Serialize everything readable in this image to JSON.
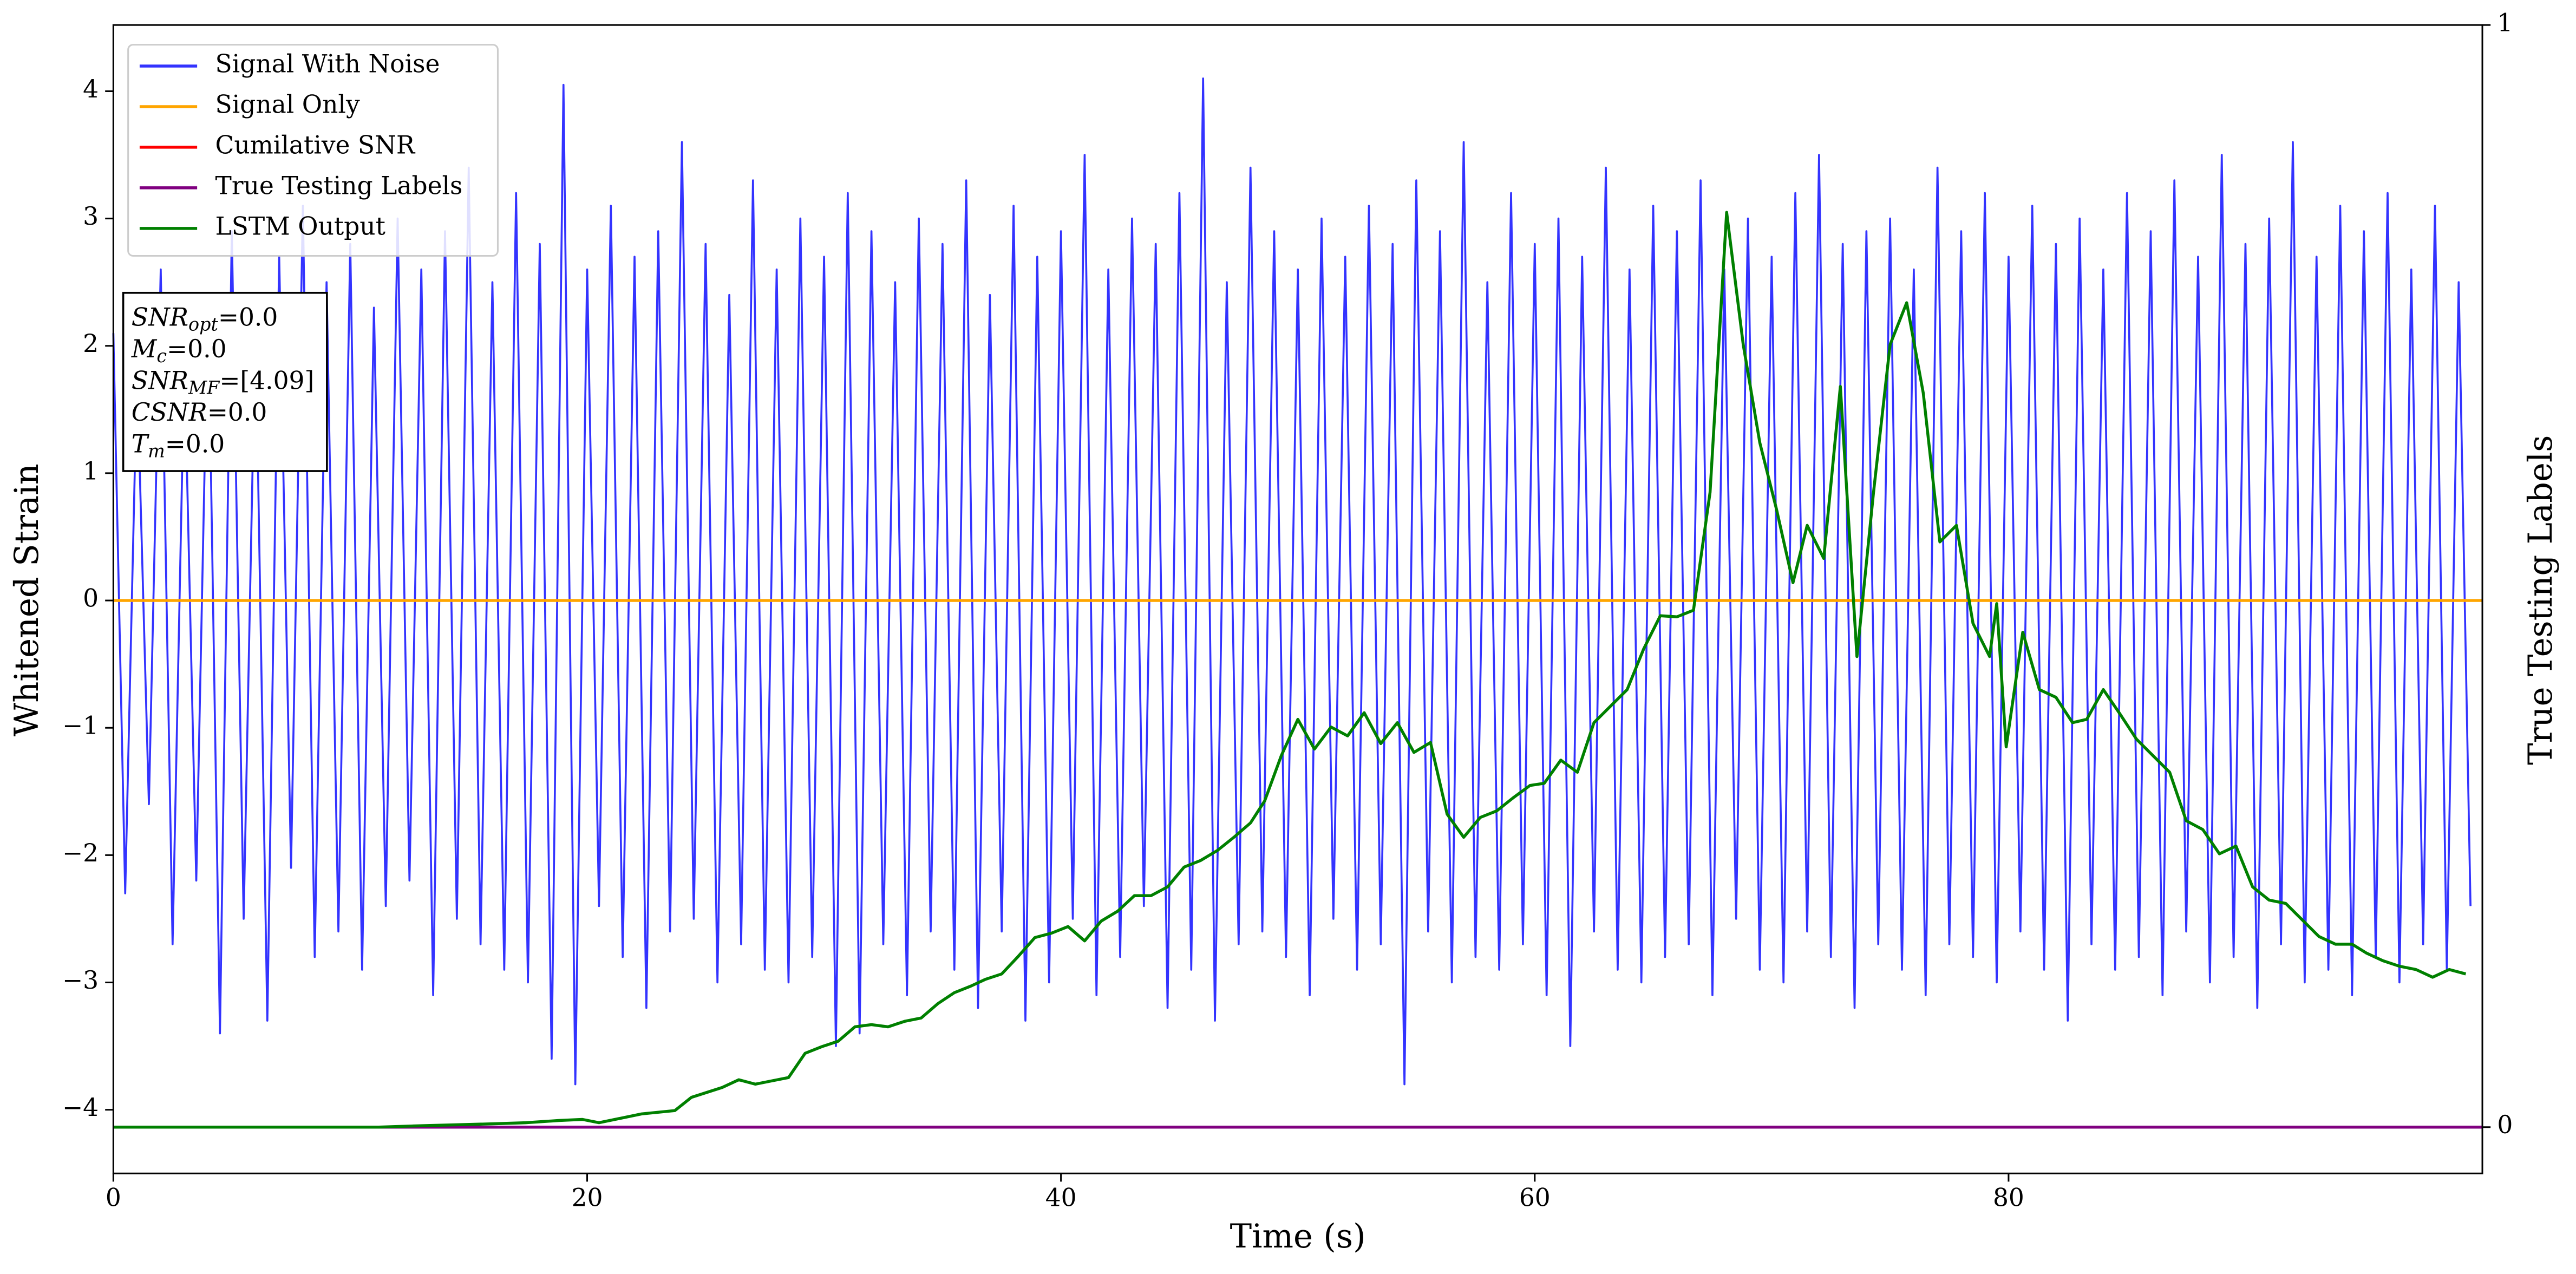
{
  "chart_data": {
    "type": "line",
    "xlabel": "Time (s)",
    "ylabel": "Whitened Strain",
    "y2label": "True Testing Labels",
    "xlim": [
      0,
      100
    ],
    "ylim": [
      -4.5,
      4.52
    ],
    "y2lim": [
      -0.042,
      1.0
    ],
    "xticks": [
      0,
      20,
      40,
      60,
      80
    ],
    "yticks": [
      {
        "value": -4,
        "label": "−4"
      },
      {
        "value": -3,
        "label": "−3"
      },
      {
        "value": -2,
        "label": "−2"
      },
      {
        "value": -1,
        "label": "−1"
      },
      0,
      1,
      2,
      3,
      4
    ],
    "y2ticks": [
      0,
      1
    ],
    "legend": "upper left",
    "annotation": [
      {
        "base": "SNR",
        "sub": "opt",
        "text": "=0.0"
      },
      {
        "base": "M",
        "sub": "c",
        "text": "=0.0"
      },
      {
        "base": "SNR",
        "sub": "MF",
        "text": "=[4.09]"
      },
      {
        "base": "CSNR",
        "text": "=0.0"
      },
      {
        "base": "T",
        "sub": "m",
        "text": "=0.0"
      }
    ],
    "series": [
      {
        "name": "Signal With Noise",
        "color": "#3333ff",
        "x": [
          0,
          0.5,
          1,
          1.5,
          2,
          2.5,
          3,
          3.5,
          4,
          4.5,
          5,
          5.5,
          6,
          6.5,
          7,
          7.5,
          8,
          8.5,
          9,
          9.5,
          10,
          10.5,
          11,
          11.5,
          12,
          12.5,
          13,
          13.5,
          14,
          14.5,
          15,
          15.5,
          16,
          16.5,
          17,
          17.5,
          18,
          18.5,
          19,
          19.5,
          20,
          20.5,
          21,
          21.5,
          22,
          22.5,
          23,
          23.5,
          24,
          24.5,
          25,
          25.5,
          26,
          26.5,
          27,
          27.5,
          28,
          28.5,
          29,
          29.5,
          30,
          30.5,
          31,
          31.5,
          32,
          32.5,
          33,
          33.5,
          34,
          34.5,
          35,
          35.5,
          36,
          36.5,
          37,
          37.5,
          38,
          38.5,
          39,
          39.5,
          40,
          40.5,
          41,
          41.5,
          42,
          42.5,
          43,
          43.5,
          44,
          44.5,
          45,
          45.5,
          46,
          46.5,
          47,
          47.5,
          48,
          48.5,
          49,
          49.5,
          50,
          50.5,
          51,
          51.5,
          52,
          52.5,
          53,
          53.5,
          54,
          54.5,
          55,
          55.5,
          56,
          56.5,
          57,
          57.5,
          58,
          58.5,
          59,
          59.5,
          60,
          60.5,
          61,
          61.5,
          62,
          62.5,
          63,
          63.5,
          64,
          64.5,
          65,
          65.5,
          66,
          66.5,
          67,
          67.5,
          68,
          68.5,
          69,
          69.5,
          70,
          70.5,
          71,
          71.5,
          72,
          72.5,
          73,
          73.5,
          74,
          74.5,
          75,
          75.5,
          76,
          76.5,
          77,
          77.5,
          78,
          78.5,
          79,
          79.5,
          80,
          80.5,
          81,
          81.5,
          82,
          82.5,
          83,
          83.5,
          84,
          84.5,
          85,
          85.5,
          86,
          86.5,
          87,
          87.5,
          88,
          88.5,
          89,
          89.5,
          90,
          90.5,
          91,
          91.5,
          92,
          92.5,
          93,
          93.5,
          94,
          94.5,
          95,
          95.5,
          96,
          96.5,
          97,
          97.5,
          98,
          98.5,
          99,
          99.5
        ],
        "values": [
          2.1,
          -2.3,
          1.8,
          -1.6,
          2.6,
          -2.7,
          1.9,
          -2.2,
          2.4,
          -3.4,
          2.9,
          -2.5,
          2.2,
          -3.3,
          2.7,
          -2.1,
          3.1,
          -2.8,
          2.5,
          -2.6,
          2.8,
          -2.9,
          2.3,
          -2.4,
          3.0,
          -2.2,
          2.6,
          -3.1,
          2.9,
          -2.5,
          3.4,
          -2.7,
          2.5,
          -2.9,
          3.2,
          -3.0,
          2.8,
          -3.6,
          4.05,
          -3.8,
          2.6,
          -2.4,
          3.1,
          -2.8,
          2.7,
          -3.2,
          2.9,
          -2.6,
          3.6,
          -2.5,
          2.8,
          -3.0,
          2.4,
          -2.7,
          3.3,
          -2.9,
          2.6,
          -3.0,
          3.0,
          -2.8,
          2.7,
          -3.5,
          3.2,
          -3.4,
          2.9,
          -2.7,
          2.5,
          -3.1,
          3.0,
          -2.6,
          2.8,
          -2.9,
          3.3,
          -3.2,
          2.4,
          -2.6,
          3.1,
          -3.3,
          2.7,
          -3.0,
          2.9,
          -2.5,
          3.5,
          -3.1,
          2.6,
          -2.8,
          3.0,
          -2.4,
          2.8,
          -3.2,
          3.2,
          -2.9,
          4.1,
          -3.3,
          2.5,
          -2.7,
          3.4,
          -2.6,
          2.9,
          -2.8,
          2.6,
          -3.1,
          3.0,
          -2.5,
          2.7,
          -2.9,
          3.1,
          -2.7,
          2.8,
          -3.8,
          3.3,
          -2.6,
          2.9,
          -3.0,
          3.6,
          -2.8,
          2.5,
          -2.9,
          3.2,
          -2.7,
          2.8,
          -3.1,
          3.0,
          -3.5,
          2.7,
          -2.6,
          3.4,
          -2.9,
          2.6,
          -3.0,
          3.1,
          -2.8,
          2.9,
          -2.7,
          3.3,
          -3.1,
          2.6,
          -2.5,
          3.0,
          -2.9,
          2.7,
          -3.0,
          3.2,
          -2.6,
          3.5,
          -2.8,
          2.8,
          -3.2,
          2.9,
          -2.7,
          3.0,
          -2.9,
          2.6,
          -3.1,
          3.4,
          -2.7,
          2.9,
          -2.8,
          3.2,
          -3.0,
          2.7,
          -2.6,
          3.1,
          -2.9,
          2.8,
          -3.3,
          3.0,
          -2.7,
          2.6,
          -2.9,
          3.2,
          -2.8,
          2.9,
          -3.1,
          3.3,
          -2.6,
          2.7,
          -3.0,
          3.5,
          -2.8,
          2.8,
          -3.2,
          3.0,
          -2.7,
          3.6,
          -3.0,
          2.7,
          -2.9,
          3.1,
          -3.1,
          2.9,
          -2.8,
          3.2,
          -3.0,
          2.6,
          -2.7,
          3.1,
          -2.9,
          2.5,
          -2.4
        ]
      },
      {
        "name": "Signal Only",
        "color": "#ffa500",
        "x": [
          0,
          100
        ],
        "values": [
          0,
          0
        ]
      },
      {
        "name": "Cumilative SNR",
        "color": "#ff0000",
        "axis": "y2",
        "x": [
          0,
          100
        ],
        "values": [
          0,
          0
        ]
      },
      {
        "name": "True Testing Labels",
        "color": "#800080",
        "axis": "y2",
        "x": [
          0,
          100
        ],
        "values": [
          0,
          0
        ]
      },
      {
        "name": "LSTM Output",
        "color": "#008000",
        "axis": "y2",
        "x": [
          0,
          11.2,
          12.6,
          16.0,
          17.4,
          18.8,
          19.8,
          20.5,
          22.3,
          23.7,
          24.4,
          25.7,
          26.4,
          27.1,
          27.8,
          28.5,
          29.2,
          29.9,
          30.6,
          31.3,
          32.0,
          32.7,
          33.4,
          34.1,
          34.8,
          35.5,
          36.2,
          36.8,
          37.5,
          38.2,
          38.9,
          39.6,
          40.3,
          41.0,
          41.7,
          42.4,
          43.1,
          43.8,
          44.5,
          45.2,
          45.9,
          46.6,
          47.3,
          48.0,
          48.6,
          49.3,
          50.0,
          50.7,
          51.4,
          52.1,
          52.8,
          53.5,
          54.2,
          54.9,
          55.6,
          56.3,
          57.0,
          57.7,
          58.4,
          59.1,
          59.8,
          60.4,
          61.1,
          61.8,
          62.5,
          63.2,
          63.9,
          64.6,
          65.3,
          66.0,
          66.7,
          67.4,
          68.1,
          68.8,
          69.5,
          70.2,
          70.9,
          71.5,
          72.2,
          72.9,
          73.6,
          74.3,
          75.0,
          75.7,
          76.4,
          77.1,
          77.8,
          78.5,
          79.2,
          79.5,
          79.9,
          80.6,
          81.3,
          82.0,
          82.7,
          83.3,
          84.0,
          84.7,
          85.4,
          86.1,
          86.8,
          87.5,
          88.2,
          88.9,
          89.6,
          90.3,
          91.0,
          91.7,
          92.4,
          93.1,
          93.8,
          94.5,
          95.1,
          95.8,
          96.5,
          97.2,
          97.9,
          98.6,
          99.3
        ],
        "values": [
          0,
          0,
          0.001,
          0.003,
          0.004,
          0.006,
          0.007,
          0.004,
          0.012,
          0.015,
          0.027,
          0.036,
          0.043,
          0.039,
          0.042,
          0.045,
          0.067,
          0.073,
          0.078,
          0.091,
          0.093,
          0.091,
          0.096,
          0.099,
          0.112,
          0.122,
          0.128,
          0.134,
          0.139,
          0.155,
          0.172,
          0.176,
          0.182,
          0.169,
          0.187,
          0.196,
          0.21,
          0.21,
          0.218,
          0.236,
          0.242,
          0.251,
          0.263,
          0.276,
          0.296,
          0.337,
          0.37,
          0.343,
          0.363,
          0.355,
          0.376,
          0.348,
          0.367,
          0.34,
          0.349,
          0.284,
          0.263,
          0.281,
          0.287,
          0.299,
          0.31,
          0.312,
          0.333,
          0.322,
          0.367,
          0.382,
          0.397,
          0.434,
          0.464,
          0.463,
          0.469,
          0.576,
          0.83,
          0.71,
          0.621,
          0.561,
          0.494,
          0.546,
          0.516,
          0.672,
          0.427,
          0.576,
          0.71,
          0.748,
          0.666,
          0.531,
          0.546,
          0.457,
          0.427,
          0.475,
          0.345,
          0.449,
          0.397,
          0.39,
          0.367,
          0.37,
          0.397,
          0.375,
          0.352,
          0.337,
          0.322,
          0.278,
          0.27,
          0.248,
          0.255,
          0.218,
          0.206,
          0.203,
          0.188,
          0.173,
          0.166,
          0.166,
          0.158,
          0.151,
          0.146,
          0.143,
          0.136,
          0.143,
          0.139
        ]
      }
    ]
  }
}
